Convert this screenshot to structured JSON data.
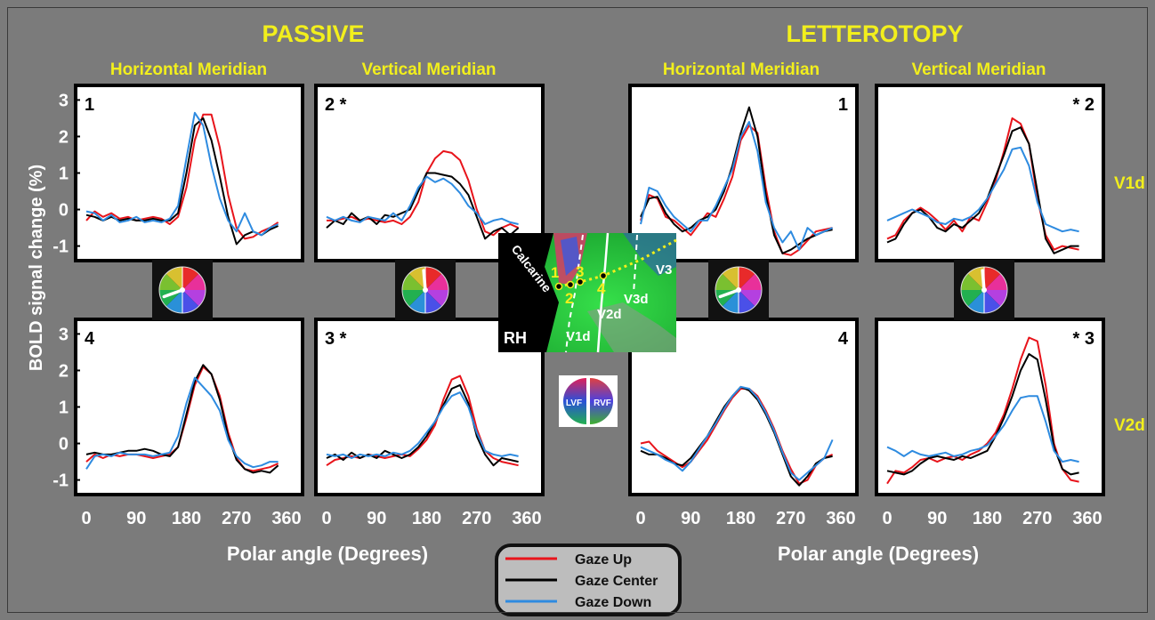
{
  "figure": {
    "group_titles": [
      "PASSIVE",
      "LETTEROTOPY"
    ],
    "column_titles": [
      "Horizontal Meridian",
      "Vertical Meridian",
      "Horizontal Meridian",
      "Vertical Meridian"
    ],
    "row_labels": [
      "V1d",
      "V2d"
    ],
    "ylabel": "BOLD signal change (%)",
    "xlabel": "Polar angle (Degrees)",
    "legend": [
      "Gaze Up",
      "Gaze Center",
      "Gaze Down"
    ],
    "inset": {
      "hemisphere": "RH",
      "sulcus": "Calcarine",
      "areas": [
        "V1d",
        "V2d",
        "V3d",
        "V3"
      ],
      "rois": [
        "1",
        "2",
        "3",
        "4"
      ],
      "field_labels": [
        "LVF",
        "RVF"
      ]
    }
  },
  "chart_data": [
    {
      "type": "line",
      "panel": "1",
      "title": "Horizontal Meridian",
      "xlim": [
        0,
        360
      ],
      "ylim": [
        -1.4,
        3.4
      ],
      "xticks": [
        0,
        90,
        180,
        270,
        360
      ],
      "yticks": [
        -1,
        0,
        1,
        2,
        3
      ],
      "x": [
        0,
        15,
        30,
        45,
        60,
        75,
        90,
        105,
        120,
        135,
        150,
        165,
        180,
        195,
        210,
        225,
        240,
        255,
        270,
        285,
        300,
        315,
        330,
        345
      ],
      "series": [
        {
          "name": "Gaze Up",
          "color": "#e8141b",
          "values": [
            -0.3,
            -0.05,
            -0.2,
            -0.1,
            -0.25,
            -0.2,
            -0.3,
            -0.25,
            -0.2,
            -0.25,
            -0.4,
            -0.2,
            0.6,
            1.9,
            2.6,
            2.6,
            1.7,
            0.4,
            -0.5,
            -0.8,
            -0.75,
            -0.6,
            -0.5,
            -0.35
          ]
        },
        {
          "name": "Gaze Center",
          "color": "#000000",
          "values": [
            -0.15,
            -0.2,
            -0.3,
            -0.2,
            -0.3,
            -0.25,
            -0.3,
            -0.3,
            -0.25,
            -0.3,
            -0.3,
            -0.1,
            1.0,
            2.3,
            2.5,
            1.9,
            0.9,
            -0.2,
            -0.95,
            -0.7,
            -0.6,
            -0.7,
            -0.55,
            -0.45
          ]
        },
        {
          "name": "Gaze Down",
          "color": "#2e8be0",
          "values": [
            -0.05,
            -0.1,
            -0.3,
            -0.15,
            -0.35,
            -0.3,
            -0.2,
            -0.35,
            -0.3,
            -0.35,
            -0.25,
            0.1,
            1.4,
            2.65,
            2.3,
            1.2,
            0.3,
            -0.3,
            -0.6,
            -0.1,
            -0.6,
            -0.7,
            -0.5,
            -0.4
          ]
        }
      ]
    },
    {
      "type": "line",
      "panel": "2 *",
      "title": "Vertical Meridian",
      "xlim": [
        0,
        360
      ],
      "ylim": [
        -1.4,
        3.4
      ],
      "xticks": [
        0,
        90,
        180,
        270,
        360
      ],
      "yticks": [
        -1,
        0,
        1,
        2,
        3
      ],
      "x": [
        0,
        15,
        30,
        45,
        60,
        75,
        90,
        105,
        120,
        135,
        150,
        165,
        180,
        195,
        210,
        225,
        240,
        255,
        270,
        285,
        300,
        315,
        330,
        345
      ],
      "series": [
        {
          "name": "Gaze Up",
          "color": "#e8141b",
          "values": [
            -0.3,
            -0.3,
            -0.25,
            -0.2,
            -0.3,
            -0.25,
            -0.3,
            -0.35,
            -0.3,
            -0.4,
            -0.2,
            0.2,
            1.0,
            1.4,
            1.6,
            1.55,
            1.35,
            0.8,
            0.0,
            -0.6,
            -0.7,
            -0.5,
            -0.4,
            -0.5
          ]
        },
        {
          "name": "Gaze Center",
          "color": "#000000",
          "values": [
            -0.5,
            -0.3,
            -0.4,
            -0.1,
            -0.3,
            -0.2,
            -0.4,
            -0.15,
            -0.2,
            -0.1,
            0.0,
            0.5,
            1.0,
            1.0,
            0.95,
            0.9,
            0.7,
            0.4,
            -0.2,
            -0.8,
            -0.6,
            -0.5,
            -0.7,
            -0.5
          ]
        },
        {
          "name": "Gaze Down",
          "color": "#2e8be0",
          "values": [
            -0.2,
            -0.3,
            -0.2,
            -0.3,
            -0.35,
            -0.2,
            -0.25,
            -0.3,
            -0.1,
            -0.3,
            0.1,
            0.6,
            0.9,
            0.75,
            0.85,
            0.7,
            0.45,
            0.1,
            -0.1,
            -0.4,
            -0.3,
            -0.25,
            -0.35,
            -0.4
          ]
        }
      ]
    },
    {
      "type": "line",
      "panel": "1",
      "title": "Horizontal Meridian",
      "xlim": [
        0,
        360
      ],
      "ylim": [
        -1.4,
        3.4
      ],
      "xticks": [
        0,
        90,
        180,
        270,
        360
      ],
      "yticks": [
        -1,
        0,
        1,
        2,
        3
      ],
      "x": [
        0,
        15,
        30,
        45,
        60,
        75,
        90,
        105,
        120,
        135,
        150,
        165,
        180,
        195,
        210,
        225,
        240,
        255,
        270,
        285,
        300,
        315,
        330,
        345
      ],
      "series": [
        {
          "name": "Gaze Up",
          "color": "#e8141b",
          "values": [
            -0.3,
            0.4,
            0.3,
            -0.2,
            -0.3,
            -0.5,
            -0.7,
            -0.4,
            -0.1,
            -0.2,
            0.3,
            0.9,
            1.9,
            2.3,
            2.1,
            0.6,
            -0.6,
            -1.2,
            -1.25,
            -1.1,
            -0.85,
            -0.6,
            -0.55,
            -0.5
          ]
        },
        {
          "name": "Gaze Center",
          "color": "#000000",
          "values": [
            -0.2,
            0.3,
            0.35,
            -0.1,
            -0.4,
            -0.6,
            -0.5,
            -0.3,
            -0.2,
            0.0,
            0.5,
            1.2,
            2.1,
            2.8,
            2.0,
            0.4,
            -0.7,
            -1.2,
            -1.1,
            -0.95,
            -0.8,
            -0.7,
            -0.6,
            -0.55
          ]
        },
        {
          "name": "Gaze Down",
          "color": "#2e8be0",
          "values": [
            -0.4,
            0.6,
            0.5,
            0.1,
            -0.2,
            -0.4,
            -0.6,
            -0.3,
            -0.3,
            0.1,
            0.6,
            1.1,
            2.0,
            2.4,
            1.6,
            0.2,
            -0.5,
            -0.9,
            -0.6,
            -1.1,
            -0.5,
            -0.7,
            -0.6,
            -0.5
          ]
        }
      ]
    },
    {
      "type": "line",
      "panel": "* 2",
      "title": "Vertical Meridian",
      "xlim": [
        0,
        360
      ],
      "ylim": [
        -1.4,
        3.4
      ],
      "xticks": [
        0,
        90,
        180,
        270,
        360
      ],
      "yticks": [
        -1,
        0,
        1,
        2,
        3
      ],
      "x": [
        0,
        15,
        30,
        45,
        60,
        75,
        90,
        105,
        120,
        135,
        150,
        165,
        180,
        195,
        210,
        225,
        240,
        255,
        270,
        285,
        300,
        315,
        330,
        345
      ],
      "series": [
        {
          "name": "Gaze Up",
          "color": "#e8141b",
          "values": [
            -0.8,
            -0.7,
            -0.3,
            -0.1,
            0.05,
            -0.1,
            -0.3,
            -0.55,
            -0.3,
            -0.6,
            -0.2,
            -0.3,
            0.2,
            0.8,
            1.6,
            2.5,
            2.35,
            1.8,
            0.3,
            -0.7,
            -1.1,
            -1.0,
            -1.05,
            -1.1
          ]
        },
        {
          "name": "Gaze Center",
          "color": "#000000",
          "values": [
            -0.9,
            -0.8,
            -0.4,
            -0.1,
            0.0,
            -0.2,
            -0.5,
            -0.6,
            -0.4,
            -0.5,
            -0.3,
            -0.1,
            0.3,
            0.9,
            1.5,
            2.15,
            2.25,
            1.8,
            0.5,
            -0.8,
            -1.2,
            -1.1,
            -1.0,
            -1.0
          ]
        },
        {
          "name": "Gaze Down",
          "color": "#2e8be0",
          "values": [
            -0.3,
            -0.2,
            -0.1,
            0.0,
            -0.1,
            -0.2,
            -0.35,
            -0.4,
            -0.25,
            -0.3,
            -0.2,
            0.0,
            0.3,
            0.7,
            1.1,
            1.65,
            1.7,
            1.2,
            0.2,
            -0.4,
            -0.5,
            -0.6,
            -0.55,
            -0.6
          ]
        }
      ]
    },
    {
      "type": "line",
      "panel": "4",
      "title": "Horizontal Meridian",
      "xlim": [
        0,
        360
      ],
      "ylim": [
        -1.4,
        3.4
      ],
      "xticks": [
        0,
        90,
        180,
        270,
        360
      ],
      "yticks": [
        -1,
        0,
        1,
        2,
        3
      ],
      "x": [
        0,
        15,
        30,
        45,
        60,
        75,
        90,
        105,
        120,
        135,
        150,
        165,
        180,
        195,
        210,
        225,
        240,
        255,
        270,
        285,
        300,
        315,
        330,
        345
      ],
      "series": [
        {
          "name": "Gaze Up",
          "color": "#e8141b",
          "values": [
            -0.5,
            -0.3,
            -0.4,
            -0.3,
            -0.35,
            -0.3,
            -0.3,
            -0.35,
            -0.4,
            -0.35,
            -0.3,
            -0.1,
            0.7,
            1.6,
            2.1,
            1.9,
            1.3,
            0.3,
            -0.4,
            -0.7,
            -0.75,
            -0.7,
            -0.65,
            -0.55
          ]
        },
        {
          "name": "Gaze Center",
          "color": "#000000",
          "values": [
            -0.3,
            -0.25,
            -0.3,
            -0.3,
            -0.25,
            -0.2,
            -0.2,
            -0.15,
            -0.2,
            -0.3,
            -0.35,
            -0.1,
            0.8,
            1.7,
            2.15,
            1.9,
            1.2,
            0.2,
            -0.45,
            -0.7,
            -0.8,
            -0.75,
            -0.8,
            -0.6
          ]
        },
        {
          "name": "Gaze Down",
          "color": "#2e8be0",
          "values": [
            -0.7,
            -0.35,
            -0.3,
            -0.35,
            -0.25,
            -0.3,
            -0.3,
            -0.3,
            -0.35,
            -0.3,
            -0.25,
            0.2,
            1.1,
            1.8,
            1.55,
            1.3,
            0.9,
            0.1,
            -0.35,
            -0.55,
            -0.65,
            -0.6,
            -0.5,
            -0.5
          ]
        }
      ]
    },
    {
      "type": "line",
      "panel": "3 *",
      "title": "Vertical Meridian",
      "xlim": [
        0,
        360
      ],
      "ylim": [
        -1.4,
        3.4
      ],
      "xticks": [
        0,
        90,
        180,
        270,
        360
      ],
      "yticks": [
        -1,
        0,
        1,
        2,
        3
      ],
      "x": [
        0,
        15,
        30,
        45,
        60,
        75,
        90,
        105,
        120,
        135,
        150,
        165,
        180,
        195,
        210,
        225,
        240,
        255,
        270,
        285,
        300,
        315,
        330,
        345
      ],
      "series": [
        {
          "name": "Gaze Up",
          "color": "#e8141b",
          "values": [
            -0.6,
            -0.45,
            -0.4,
            -0.35,
            -0.4,
            -0.3,
            -0.35,
            -0.4,
            -0.35,
            -0.3,
            -0.35,
            -0.15,
            0.1,
            0.5,
            1.2,
            1.75,
            1.85,
            1.3,
            0.4,
            -0.2,
            -0.4,
            -0.5,
            -0.55,
            -0.6
          ]
        },
        {
          "name": "Gaze Center",
          "color": "#000000",
          "values": [
            -0.4,
            -0.3,
            -0.45,
            -0.25,
            -0.4,
            -0.3,
            -0.4,
            -0.2,
            -0.3,
            -0.4,
            -0.3,
            -0.1,
            0.2,
            0.6,
            1.05,
            1.5,
            1.6,
            1.1,
            0.2,
            -0.3,
            -0.6,
            -0.4,
            -0.45,
            -0.5
          ]
        },
        {
          "name": "Gaze Down",
          "color": "#2e8be0",
          "values": [
            -0.3,
            -0.35,
            -0.3,
            -0.4,
            -0.3,
            -0.35,
            -0.3,
            -0.35,
            -0.25,
            -0.3,
            -0.2,
            0.0,
            0.3,
            0.6,
            1.0,
            1.3,
            1.4,
            1.0,
            0.3,
            -0.2,
            -0.3,
            -0.35,
            -0.3,
            -0.35
          ]
        }
      ]
    },
    {
      "type": "line",
      "panel": "4",
      "title": "Horizontal Meridian",
      "xlim": [
        0,
        360
      ],
      "ylim": [
        -1.4,
        3.4
      ],
      "xticks": [
        0,
        90,
        180,
        270,
        360
      ],
      "yticks": [
        -1,
        0,
        1,
        2,
        3
      ],
      "x": [
        0,
        15,
        30,
        45,
        60,
        75,
        90,
        105,
        120,
        135,
        150,
        165,
        180,
        195,
        210,
        225,
        240,
        255,
        270,
        285,
        300,
        315,
        330,
        345
      ],
      "series": [
        {
          "name": "Gaze Up",
          "color": "#e8141b",
          "values": [
            0.0,
            0.05,
            -0.2,
            -0.35,
            -0.5,
            -0.65,
            -0.5,
            -0.2,
            0.1,
            0.5,
            0.9,
            1.25,
            1.5,
            1.5,
            1.3,
            0.9,
            0.4,
            -0.2,
            -0.7,
            -1.1,
            -1.0,
            -0.6,
            -0.4,
            -0.3
          ]
        },
        {
          "name": "Gaze Center",
          "color": "#000000",
          "values": [
            -0.2,
            -0.3,
            -0.3,
            -0.4,
            -0.55,
            -0.6,
            -0.4,
            -0.1,
            0.2,
            0.6,
            1.0,
            1.3,
            1.55,
            1.45,
            1.2,
            0.8,
            0.3,
            -0.3,
            -0.9,
            -1.15,
            -0.9,
            -0.55,
            -0.4,
            -0.35
          ]
        },
        {
          "name": "Gaze Down",
          "color": "#2e8be0",
          "values": [
            -0.1,
            -0.2,
            -0.3,
            -0.45,
            -0.55,
            -0.75,
            -0.5,
            -0.15,
            0.2,
            0.55,
            0.95,
            1.3,
            1.55,
            1.5,
            1.25,
            0.85,
            0.35,
            -0.25,
            -0.8,
            -1.0,
            -0.8,
            -0.6,
            -0.4,
            0.1
          ]
        }
      ]
    },
    {
      "type": "line",
      "panel": "* 3",
      "title": "Vertical Meridian",
      "xlim": [
        0,
        360
      ],
      "ylim": [
        -1.4,
        3.4
      ],
      "xticks": [
        0,
        90,
        180,
        270,
        360
      ],
      "yticks": [
        -1,
        0,
        1,
        2,
        3
      ],
      "x": [
        0,
        15,
        30,
        45,
        60,
        75,
        90,
        105,
        120,
        135,
        150,
        165,
        180,
        195,
        210,
        225,
        240,
        255,
        270,
        285,
        300,
        315,
        330,
        345
      ],
      "series": [
        {
          "name": "Gaze Up",
          "color": "#e8141b",
          "values": [
            -1.1,
            -0.75,
            -0.8,
            -0.65,
            -0.45,
            -0.4,
            -0.5,
            -0.4,
            -0.35,
            -0.45,
            -0.3,
            -0.2,
            0.0,
            0.3,
            0.8,
            1.5,
            2.3,
            2.9,
            2.8,
            1.6,
            0.0,
            -0.7,
            -1.0,
            -1.05
          ]
        },
        {
          "name": "Gaze Center",
          "color": "#000000",
          "values": [
            -0.75,
            -0.8,
            -0.85,
            -0.75,
            -0.55,
            -0.4,
            -0.35,
            -0.4,
            -0.45,
            -0.35,
            -0.4,
            -0.3,
            -0.2,
            0.2,
            0.7,
            1.3,
            2.0,
            2.45,
            2.3,
            1.2,
            -0.1,
            -0.7,
            -0.85,
            -0.8
          ]
        },
        {
          "name": "Gaze Down",
          "color": "#2e8be0",
          "values": [
            -0.1,
            -0.2,
            -0.35,
            -0.2,
            -0.3,
            -0.35,
            -0.3,
            -0.25,
            -0.35,
            -0.3,
            -0.2,
            -0.15,
            -0.05,
            0.2,
            0.5,
            0.9,
            1.25,
            1.3,
            1.3,
            0.6,
            -0.2,
            -0.5,
            -0.45,
            -0.5
          ]
        }
      ]
    }
  ]
}
